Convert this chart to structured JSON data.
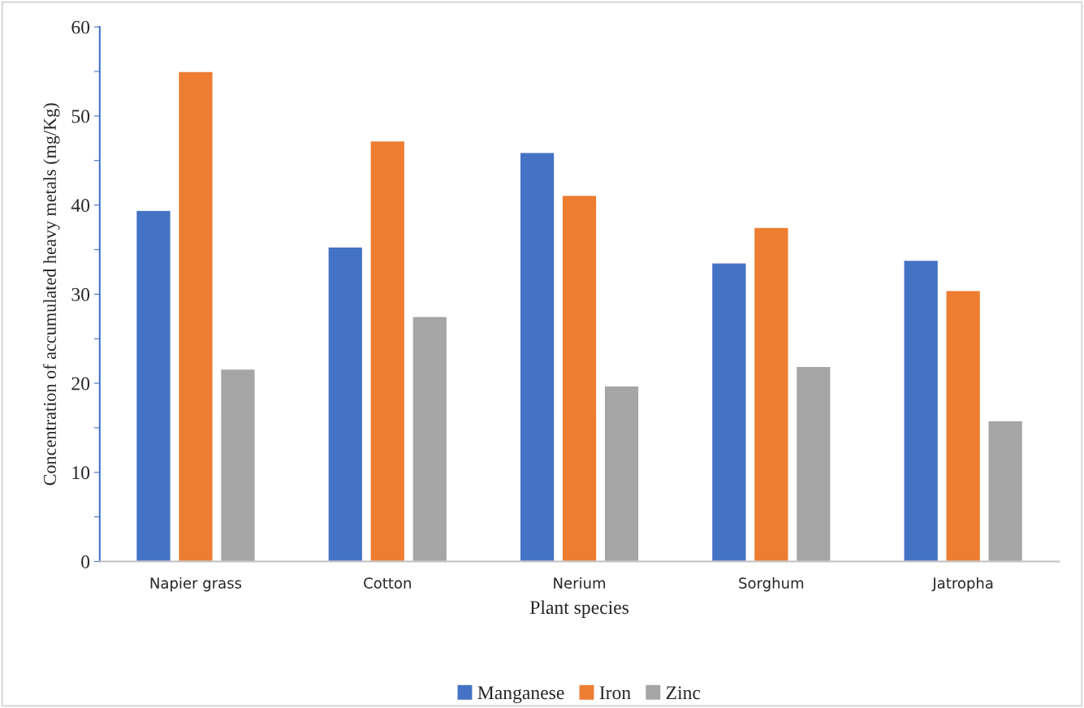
{
  "chart_data": {
    "type": "bar",
    "xlabel": "Plant species",
    "ylabel": "Concentration of accumulated heavy metals (mg/Kg)",
    "categories": [
      "Napier grass",
      "Cotton",
      "Nerium",
      "Sorghum",
      "Jatropha"
    ],
    "series": [
      {
        "name": "Manganese",
        "color": "#4472c4",
        "values": [
          39.4,
          35.3,
          45.9,
          33.5,
          33.8
        ]
      },
      {
        "name": "Iron",
        "color": "#ed7d31",
        "values": [
          55.0,
          47.2,
          41.1,
          37.5,
          30.4
        ]
      },
      {
        "name": "Zinc",
        "color": "#a5a5a5",
        "values": [
          21.6,
          27.5,
          19.7,
          21.9,
          15.8
        ]
      }
    ],
    "ylim": [
      0,
      60
    ],
    "yticks": [
      0,
      {
        "value": 5,
        "label": null
      },
      10,
      {
        "value": 15,
        "label": null
      },
      20,
      {
        "value": 25,
        "label": null
      },
      30,
      {
        "value": 35,
        "label": null
      },
      40,
      {
        "value": 45,
        "label": null
      },
      50,
      {
        "value": 55,
        "label": null
      },
      60
    ],
    "grid": false,
    "legend": "bottom"
  }
}
